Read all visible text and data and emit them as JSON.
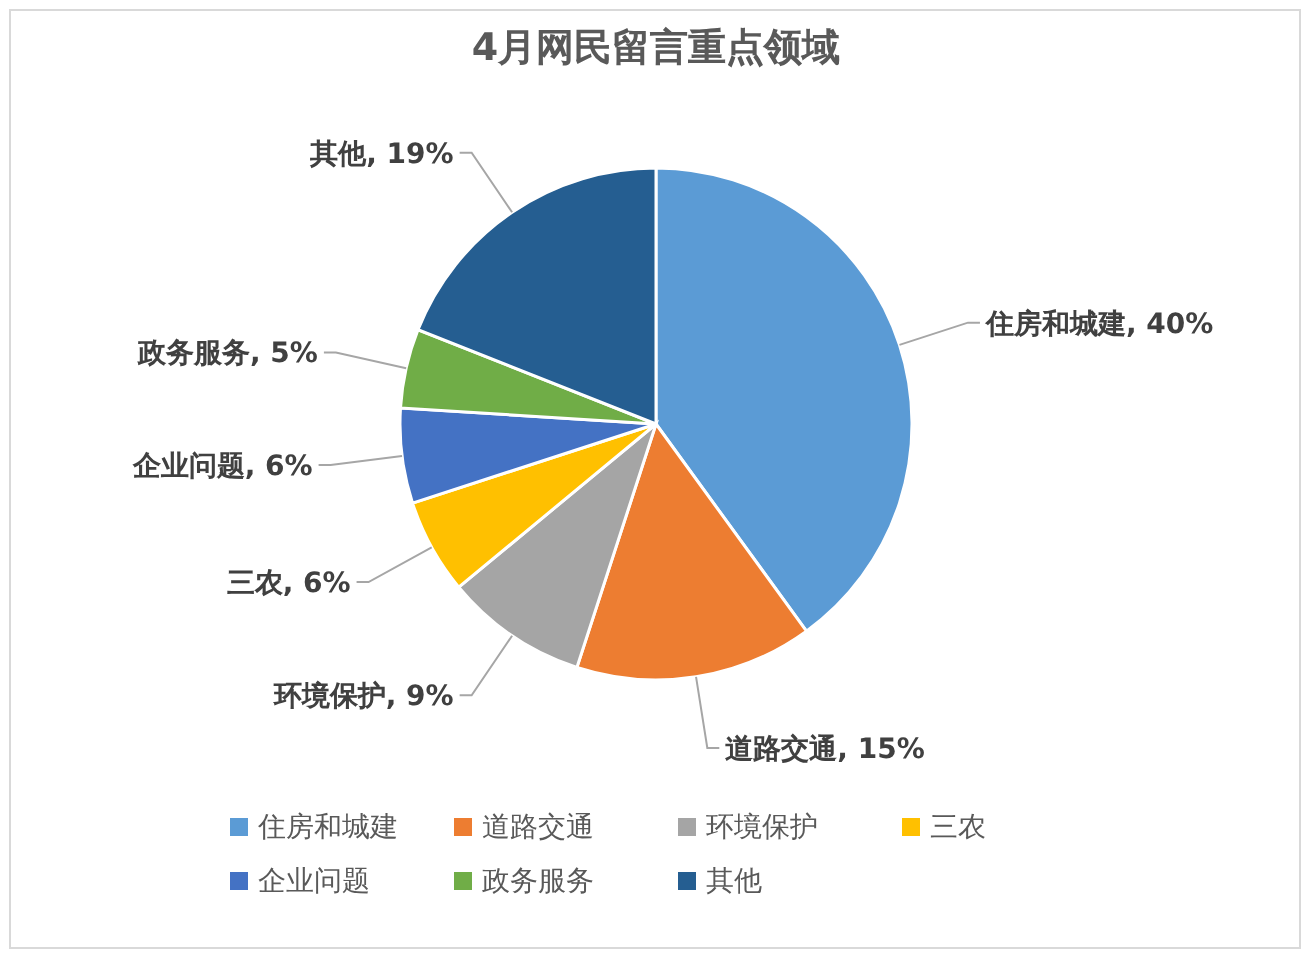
{
  "chart_data": {
    "type": "pie",
    "title": "4月网民留言重点领域",
    "categories": [
      "住房和城建",
      "道路交通",
      "环境保护",
      "三农",
      "企业问题",
      "政务服务",
      "其他"
    ],
    "values": [
      40,
      15,
      9,
      6,
      6,
      5,
      19
    ],
    "colors": [
      "#5b9bd5",
      "#ed7d31",
      "#a5a5a5",
      "#ffc000",
      "#4472c4",
      "#70ad47",
      "#255e91"
    ],
    "value_labels": [
      "住房和城建, 40%",
      "道路交通, 15%",
      "环境保护, 9%",
      "三农, 6%",
      "企业问题, 6%",
      "政务服务, 5%",
      "其他, 19%"
    ],
    "legend": "bottom"
  }
}
